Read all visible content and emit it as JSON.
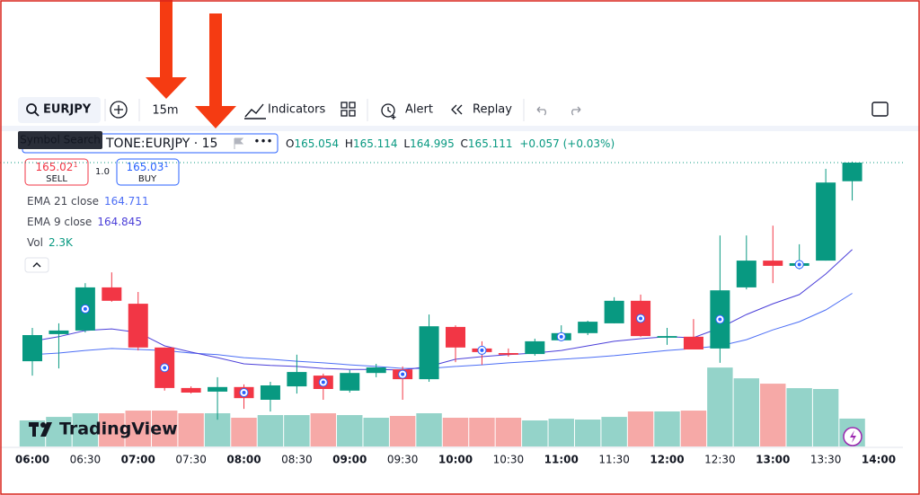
{
  "toolbar": {
    "symbol": "EURJPY",
    "interval": "15m",
    "indicators": "Indicators",
    "alert": "Alert",
    "replay": "Replay"
  },
  "tooltip": "Symbol Search",
  "legend": {
    "symbol": "TONE:EURJPY · 15",
    "o": "O",
    "h": "H",
    "l": "L",
    "c": "C",
    "change": "+0.057 (+0.03%)",
    "sell": {
      "price": "165.02",
      "pip": "1",
      "label": "SELL"
    },
    "spread": "1.0",
    "buy": {
      "price": "165.03",
      "pip": "1",
      "label": "BUY"
    },
    "vol": "Vol"
  },
  "logo": "TradingView",
  "chart_data": {
    "type": "candlestick",
    "open": [
      164.503,
      164.586,
      164.597,
      164.729,
      164.679,
      164.545,
      164.421,
      164.41,
      164.424,
      164.385,
      164.426,
      164.459,
      164.413,
      164.467,
      164.478,
      164.448,
      164.608,
      164.542,
      164.528,
      164.525,
      164.567,
      164.589,
      164.619,
      164.688,
      164.575,
      164.578,
      164.542,
      164.729,
      164.811,
      164.795,
      164.811,
      165.054
    ],
    "high": [
      164.605,
      164.619,
      164.742,
      164.775,
      164.715,
      164.545,
      164.426,
      164.454,
      164.432,
      164.44,
      164.523,
      164.465,
      164.476,
      164.495,
      164.487,
      164.646,
      164.613,
      164.564,
      164.542,
      164.572,
      164.613,
      164.627,
      164.699,
      164.707,
      164.605,
      164.632,
      164.888,
      164.888,
      164.918,
      164.861,
      165.092,
      165.114
    ],
    "low": [
      164.459,
      164.481,
      164.591,
      164.685,
      164.536,
      164.413,
      164.404,
      164.324,
      164.357,
      164.349,
      164.404,
      164.385,
      164.407,
      164.454,
      164.385,
      164.44,
      164.5,
      164.492,
      164.517,
      164.52,
      164.564,
      164.583,
      164.619,
      164.578,
      164.553,
      164.539,
      164.498,
      164.723,
      164.742,
      164.784,
      164.811,
      164.995
    ],
    "close": [
      164.583,
      164.597,
      164.729,
      164.688,
      164.545,
      164.421,
      164.407,
      164.424,
      164.39,
      164.429,
      164.47,
      164.418,
      164.467,
      164.484,
      164.448,
      164.61,
      164.545,
      164.531,
      164.523,
      164.564,
      164.589,
      164.624,
      164.688,
      164.58,
      164.58,
      164.539,
      164.72,
      164.811,
      164.795,
      164.803,
      165.05,
      165.111
    ],
    "up_color": "#089981",
    "down_color": "#f23645",
    "ylim": [
      164.242,
      165.21
    ],
    "series": [
      {
        "name": "EMA 21 close",
        "color": "#4c6ef5",
        "values": [
          164.523,
          164.528,
          164.536,
          164.542,
          164.539,
          164.536,
          164.528,
          164.523,
          164.514,
          164.509,
          164.503,
          164.498,
          164.492,
          164.487,
          164.481,
          164.481,
          164.487,
          164.492,
          164.498,
          164.503,
          164.509,
          164.514,
          164.52,
          164.528,
          164.536,
          164.542,
          164.55,
          164.569,
          164.599,
          164.624,
          164.66,
          164.711
        ]
      },
      {
        "name": "EMA 9 close",
        "color": "#4b3fd9",
        "values": [
          164.564,
          164.578,
          164.597,
          164.602,
          164.591,
          164.55,
          164.531,
          164.514,
          164.495,
          164.49,
          164.487,
          164.481,
          164.478,
          164.478,
          164.476,
          164.487,
          164.509,
          164.517,
          164.523,
          164.528,
          164.536,
          164.55,
          164.564,
          164.572,
          164.578,
          164.575,
          164.605,
          164.646,
          164.679,
          164.707,
          164.77,
          164.845
        ]
      }
    ],
    "volume": {
      "values": [
        2150,
        2440,
        2740,
        2740,
        2960,
        2960,
        2740,
        2740,
        2370,
        2590,
        2590,
        2740,
        2590,
        2370,
        2520,
        2740,
        2370,
        2370,
        2370,
        2150,
        2290,
        2220,
        2440,
        2890,
        2890,
        2960,
        6510,
        5620,
        5180,
        4810,
        4740,
        2300
      ],
      "last_label": "2.3K",
      "ylim": [
        0,
        20000
      ],
      "up_color": "#94d3c9",
      "down_color": "#f6a9a7"
    },
    "xticks": [
      "06:00",
      "06:30",
      "07:00",
      "07:30",
      "08:00",
      "08:30",
      "09:00",
      "09:30",
      "10:00",
      "10:30",
      "11:00",
      "11:30",
      "12:00",
      "12:30",
      "13:00",
      "13:30",
      "14:00"
    ]
  }
}
